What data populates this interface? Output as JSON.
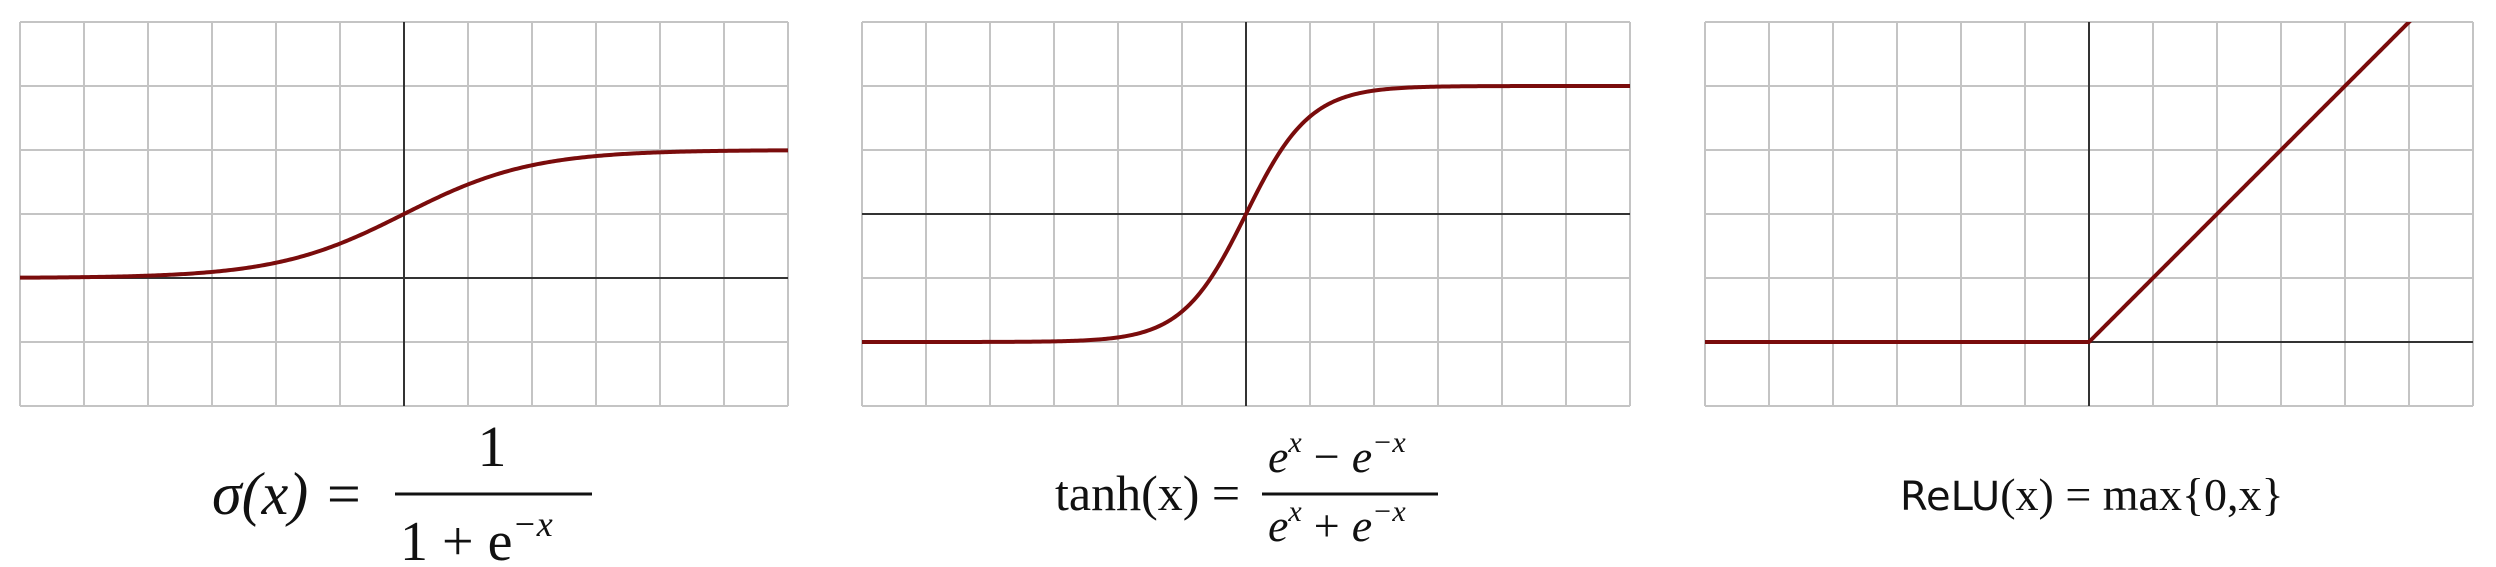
{
  "colors": {
    "background": "#ffffff",
    "grid": "#c4c4c4",
    "axis": "#333333",
    "curve": "#7a0c0c",
    "text": "#111111"
  },
  "chart_data": [
    {
      "type": "line",
      "function": "sigmoid",
      "xlim": [
        -6,
        6
      ],
      "ylim": [
        -2,
        4
      ],
      "grid": true,
      "grid_step": [
        1,
        1
      ],
      "axes_origin": [
        0,
        0
      ],
      "series": [
        {
          "x": [
            -6,
            -5,
            -4,
            -3,
            -2,
            -1,
            0,
            1,
            2,
            3,
            4,
            5,
            6
          ],
          "y": [
            0.1,
            0.15,
            0.25,
            0.4,
            0.6,
            0.8,
            1.0,
            1.2,
            1.4,
            1.6,
            1.75,
            1.85,
            1.9
          ]
        }
      ],
      "formula": {
        "lhs": "σ(x) =",
        "numerator": "1",
        "denominator_base": "1 + e",
        "denominator_exp": "−x"
      }
    },
    {
      "type": "line",
      "function": "tanh",
      "xlim": [
        -6,
        6
      ],
      "ylim": [
        -3,
        3
      ],
      "grid": true,
      "grid_step": [
        1,
        1
      ],
      "axes_origin": [
        0,
        0
      ],
      "series": [
        {
          "x": [
            -6,
            -5,
            -4,
            -3,
            -2,
            -1,
            0,
            1,
            2,
            3,
            4,
            5,
            6
          ],
          "y": [
            -2.0,
            -1.99,
            -1.96,
            -1.82,
            -1.5,
            -0.8,
            0.0,
            0.8,
            1.5,
            1.82,
            1.96,
            1.99,
            2.0
          ]
        }
      ],
      "formula": {
        "lhs": "tanh(x) =",
        "num_a_base": "e",
        "num_a_exp": "x",
        "num_op": "−",
        "num_b_base": "e",
        "num_b_exp": "−x",
        "den_a_base": "e",
        "den_a_exp": "x",
        "den_op": "+",
        "den_b_base": "e",
        "den_b_exp": "−x"
      }
    },
    {
      "type": "line",
      "function": "relu",
      "xlim": [
        -6,
        6
      ],
      "ylim": [
        -1,
        5
      ],
      "grid": true,
      "grid_step": [
        1,
        1
      ],
      "axes_origin": [
        0,
        0
      ],
      "series": [
        {
          "x": [
            -6,
            0,
            5
          ],
          "y": [
            0,
            0,
            5
          ]
        }
      ],
      "formula": {
        "name": "ReLU",
        "arg": "(x) = max{0,x}"
      }
    }
  ]
}
